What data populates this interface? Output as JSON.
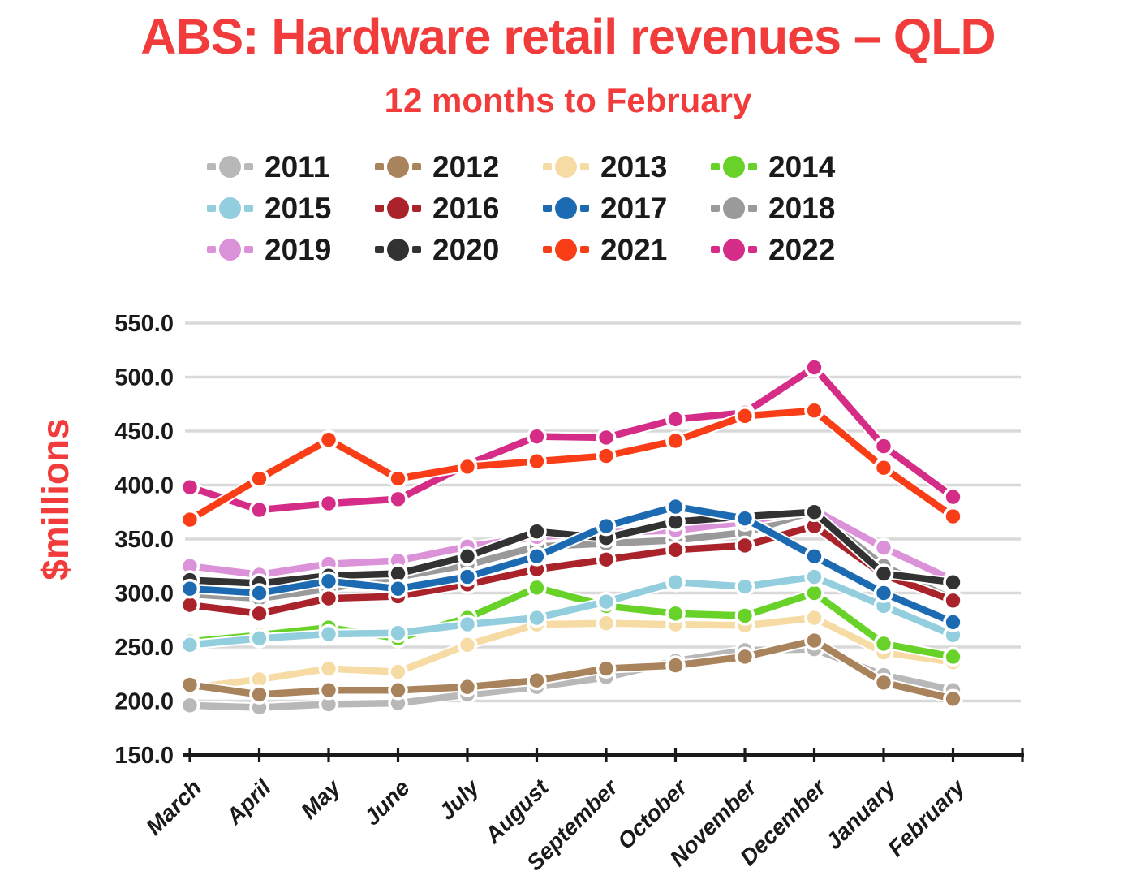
{
  "header": {
    "title": "ABS: Hardware retail revenues – QLD",
    "subtitle": "12 months to February"
  },
  "colors": {
    "accent_red": "#f23b3b",
    "axis": "#1a1a1a",
    "grid": "#d9d9d9",
    "background": "#ffffff"
  },
  "chart_data": {
    "type": "line",
    "title": "ABS: Hardware retail revenues – QLD",
    "subtitle": "12 months to February",
    "ylabel": "$millions",
    "xlabel": "",
    "ylim": [
      150,
      550
    ],
    "ytick_step": 50,
    "ytick_labels": [
      "550.0",
      "500.0",
      "450.0",
      "400.0",
      "350.0",
      "300.0",
      "250.0",
      "200.0",
      "150.0"
    ],
    "grid": "horizontal",
    "legend_position": "top",
    "marker_style": "dot-with-dashes",
    "categories": [
      "March",
      "April",
      "May",
      "June",
      "July",
      "August",
      "September",
      "October",
      "November",
      "December",
      "January",
      "February"
    ],
    "series": [
      {
        "name": "2011",
        "color": "#b8b8b8",
        "values": [
          196,
          194,
          197,
          198,
          206,
          213,
          222,
          237,
          247,
          248,
          224,
          210
        ]
      },
      {
        "name": "2012",
        "color": "#a8835c",
        "values": [
          215,
          206,
          210,
          210,
          213,
          219,
          230,
          233,
          241,
          256,
          217,
          202
        ]
      },
      {
        "name": "2013",
        "color": "#f6dca4",
        "values": [
          212,
          220,
          230,
          227,
          252,
          271,
          272,
          271,
          270,
          277,
          245,
          236
        ]
      },
      {
        "name": "2014",
        "color": "#68d228",
        "values": [
          255,
          261,
          268,
          258,
          277,
          305,
          288,
          281,
          279,
          300,
          253,
          241
        ]
      },
      {
        "name": "2015",
        "color": "#93cede",
        "values": [
          252,
          258,
          262,
          263,
          271,
          277,
          292,
          310,
          306,
          315,
          288,
          261
        ]
      },
      {
        "name": "2016",
        "color": "#aa232b",
        "values": [
          289,
          281,
          295,
          297,
          308,
          322,
          331,
          340,
          344,
          362,
          317,
          293
        ]
      },
      {
        "name": "2017",
        "color": "#1c6ab2",
        "values": [
          304,
          300,
          311,
          304,
          315,
          334,
          362,
          380,
          369,
          334,
          300,
          273
        ]
      },
      {
        "name": "2018",
        "color": "#9a9a9a",
        "values": [
          299,
          295,
          304,
          315,
          326,
          343,
          346,
          349,
          356,
          376,
          325,
          294
        ]
      },
      {
        "name": "2019",
        "color": "#dc92d8",
        "values": [
          325,
          317,
          327,
          330,
          343,
          352,
          356,
          358,
          366,
          377,
          342,
          312
        ]
      },
      {
        "name": "2020",
        "color": "#323232",
        "values": [
          312,
          309,
          316,
          318,
          334,
          357,
          351,
          366,
          371,
          375,
          318,
          310
        ]
      },
      {
        "name": "2021",
        "color": "#f93e17",
        "values": [
          368,
          406,
          442,
          406,
          417,
          422,
          427,
          441,
          464,
          469,
          416,
          371
        ]
      },
      {
        "name": "2022",
        "color": "#d52d87",
        "values": [
          398,
          377,
          383,
          387,
          419,
          445,
          444,
          461,
          467,
          509,
          436,
          389
        ]
      }
    ]
  }
}
